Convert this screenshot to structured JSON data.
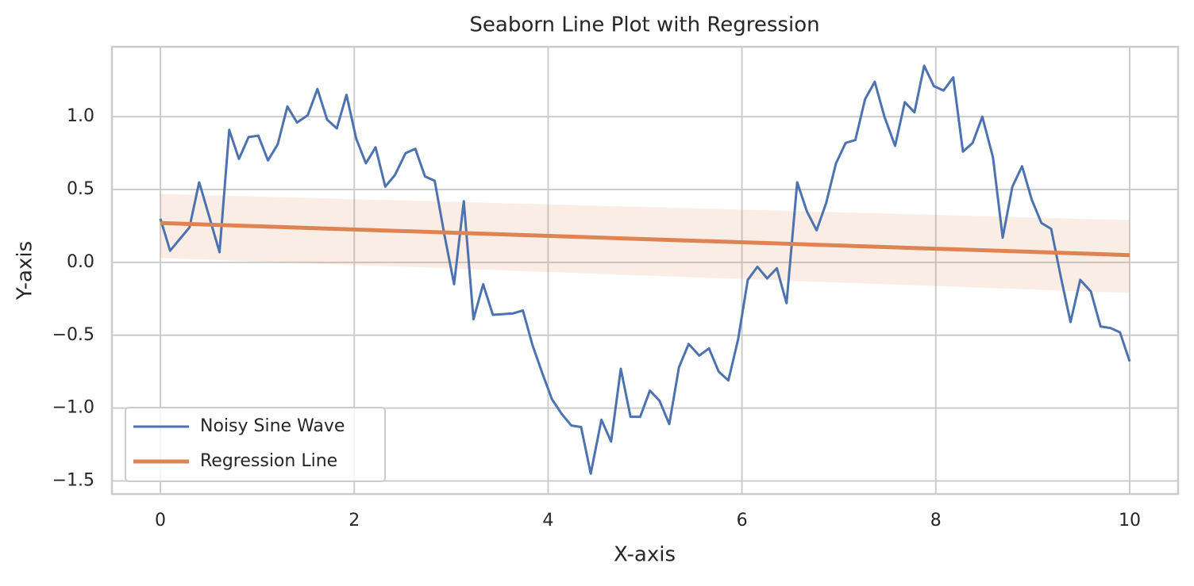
{
  "chart_data": {
    "type": "line",
    "title": "Seaborn Line Plot with Regression",
    "x_label": "X-axis",
    "y_label": "Y-axis",
    "xlim": [
      -0.5,
      10.5
    ],
    "ylim": [
      -1.59,
      1.48
    ],
    "xticks": [
      0,
      2,
      4,
      6,
      8,
      10
    ],
    "yticks": [
      {
        "value": -1.5,
        "label": "−1.5"
      },
      {
        "value": -1.0,
        "label": "−1.0"
      },
      {
        "value": -0.5,
        "label": "−0.5"
      },
      {
        "value": 0.0,
        "label": "0.0"
      },
      {
        "value": 0.5,
        "label": "0.5"
      },
      {
        "value": 1.0,
        "label": "1.0"
      }
    ],
    "grid": true,
    "legend": "lower left",
    "series": [
      {
        "name": "Noisy Sine Wave",
        "color": "#4c72b0",
        "x": [
          0,
          0.1,
          0.2,
          0.3,
          0.4,
          0.51,
          0.61,
          0.71,
          0.81,
          0.91,
          1.01,
          1.11,
          1.21,
          1.31,
          1.41,
          1.52,
          1.62,
          1.72,
          1.82,
          1.92,
          2.02,
          2.12,
          2.22,
          2.32,
          2.42,
          2.53,
          2.63,
          2.73,
          2.83,
          2.93,
          3.03,
          3.13,
          3.23,
          3.33,
          3.43,
          3.54,
          3.64,
          3.74,
          3.84,
          3.94,
          4.04,
          4.14,
          4.24,
          4.34,
          4.44,
          4.55,
          4.65,
          4.75,
          4.85,
          4.95,
          5.05,
          5.15,
          5.25,
          5.35,
          5.45,
          5.56,
          5.66,
          5.76,
          5.86,
          5.96,
          6.06,
          6.16,
          6.26,
          6.36,
          6.46,
          6.57,
          6.67,
          6.77,
          6.87,
          6.97,
          7.07,
          7.17,
          7.27,
          7.37,
          7.47,
          7.58,
          7.68,
          7.78,
          7.88,
          7.98,
          8.08,
          8.18,
          8.28,
          8.38,
          8.48,
          8.59,
          8.69,
          8.79,
          8.89,
          8.99,
          9.09,
          9.19,
          9.29,
          9.39,
          9.49,
          9.6,
          9.7,
          9.8,
          9.9,
          10
        ],
        "values": [
          0.3,
          0.08,
          0.16,
          0.24,
          0.55,
          0.3,
          0.07,
          0.91,
          0.71,
          0.86,
          0.87,
          0.7,
          0.81,
          1.07,
          0.96,
          1.01,
          1.19,
          0.98,
          0.92,
          1.15,
          0.85,
          0.68,
          0.79,
          0.52,
          0.6,
          0.75,
          0.78,
          0.59,
          0.56,
          0.19,
          -0.15,
          0.42,
          -0.39,
          -0.15,
          -0.36,
          -0.355,
          -0.35,
          -0.33,
          -0.57,
          -0.76,
          -0.94,
          -1.04,
          -1.12,
          -1.13,
          -1.45,
          -1.08,
          -1.23,
          -0.73,
          -1.06,
          -1.06,
          -0.88,
          -0.95,
          -1.11,
          -0.72,
          -0.56,
          -0.64,
          -0.59,
          -0.75,
          -0.81,
          -0.53,
          -0.12,
          -0.03,
          -0.11,
          -0.04,
          -0.28,
          0.55,
          0.35,
          0.22,
          0.41,
          0.68,
          0.82,
          0.84,
          1.12,
          1.24,
          1.0,
          0.8,
          1.1,
          1.03,
          1.35,
          1.21,
          1.18,
          1.27,
          0.76,
          0.82,
          1.0,
          0.72,
          0.17,
          0.52,
          0.66,
          0.43,
          0.27,
          0.23,
          -0.1,
          -0.41,
          -0.12,
          -0.2,
          -0.44,
          -0.45,
          -0.48,
          -0.68
        ]
      },
      {
        "name": "Regression Line",
        "color": "#dd8452",
        "x": [
          0,
          10
        ],
        "values": [
          0.27,
          0.05
        ],
        "band_lower": [
          0.03,
          -0.21
        ],
        "band_upper": [
          0.47,
          0.29
        ]
      }
    ]
  }
}
